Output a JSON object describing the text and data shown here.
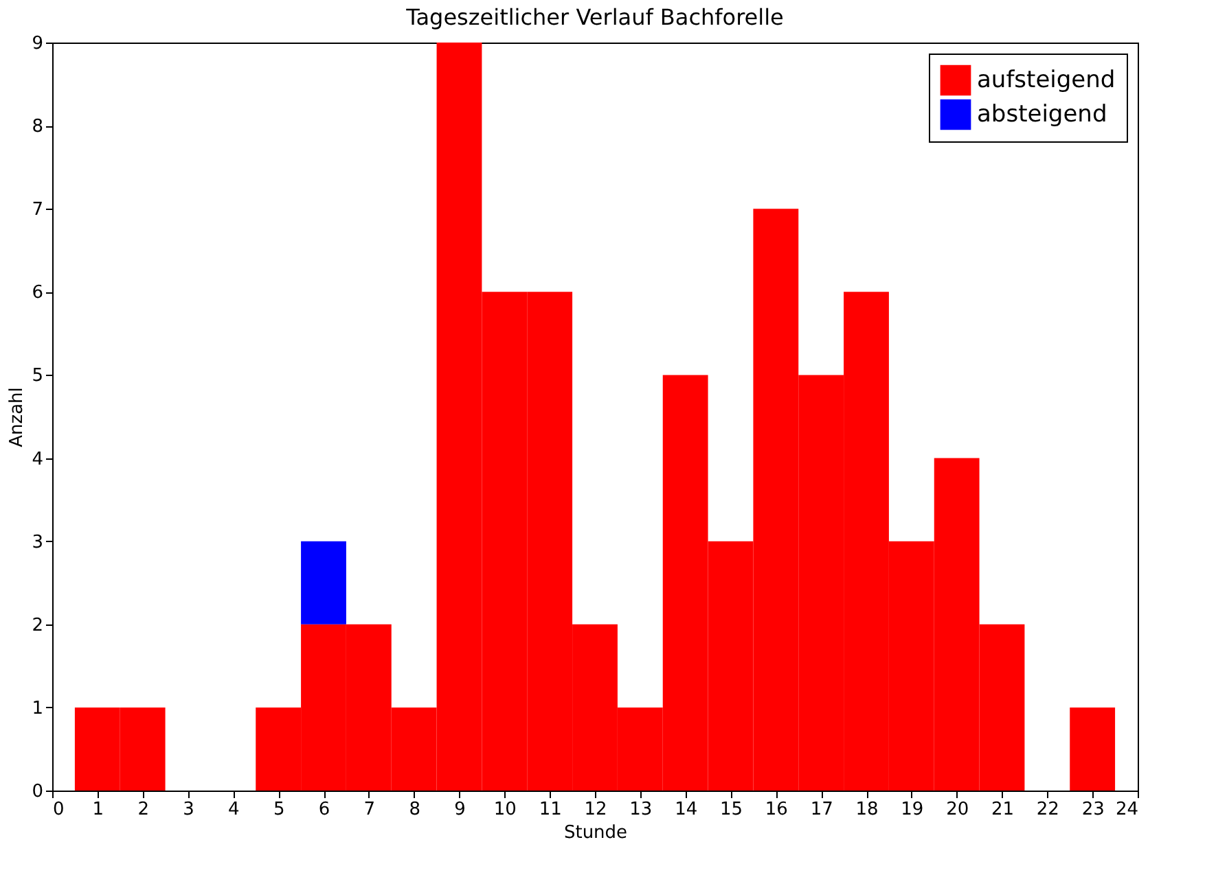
{
  "chart_data": {
    "type": "bar",
    "title": "Tageszeitlicher Verlauf Bachforelle",
    "xlabel": "Stunde",
    "ylabel": "Anzahl",
    "x": [
      1,
      2,
      3,
      4,
      5,
      6,
      7,
      8,
      9,
      10,
      11,
      12,
      13,
      14,
      15,
      16,
      17,
      18,
      19,
      20,
      21,
      22,
      23
    ],
    "series": [
      {
        "name": "aufsteigend",
        "color": "#ff0000",
        "values": [
          1,
          1,
          0,
          0,
          1,
          2,
          2,
          1,
          9,
          6,
          6,
          2,
          1,
          5,
          3,
          7,
          5,
          6,
          3,
          4,
          2,
          0,
          1
        ]
      },
      {
        "name": "absteigend",
        "color": "#0000ff",
        "values": [
          0,
          0,
          0,
          0,
          0,
          1,
          0,
          0,
          0,
          0,
          0,
          0,
          0,
          0,
          0,
          0,
          0,
          0,
          0,
          0,
          0,
          0,
          0
        ]
      }
    ],
    "stacked": true,
    "xlim": [
      0,
      24
    ],
    "xticks": [
      0,
      1,
      2,
      3,
      4,
      5,
      6,
      7,
      8,
      9,
      10,
      11,
      12,
      13,
      14,
      15,
      16,
      17,
      18,
      19,
      20,
      21,
      22,
      23,
      24
    ],
    "ylim": [
      0,
      9
    ],
    "yticks": [
      0,
      1,
      2,
      3,
      4,
      5,
      6,
      7,
      8,
      9
    ],
    "grid": false,
    "legend": "top right"
  }
}
